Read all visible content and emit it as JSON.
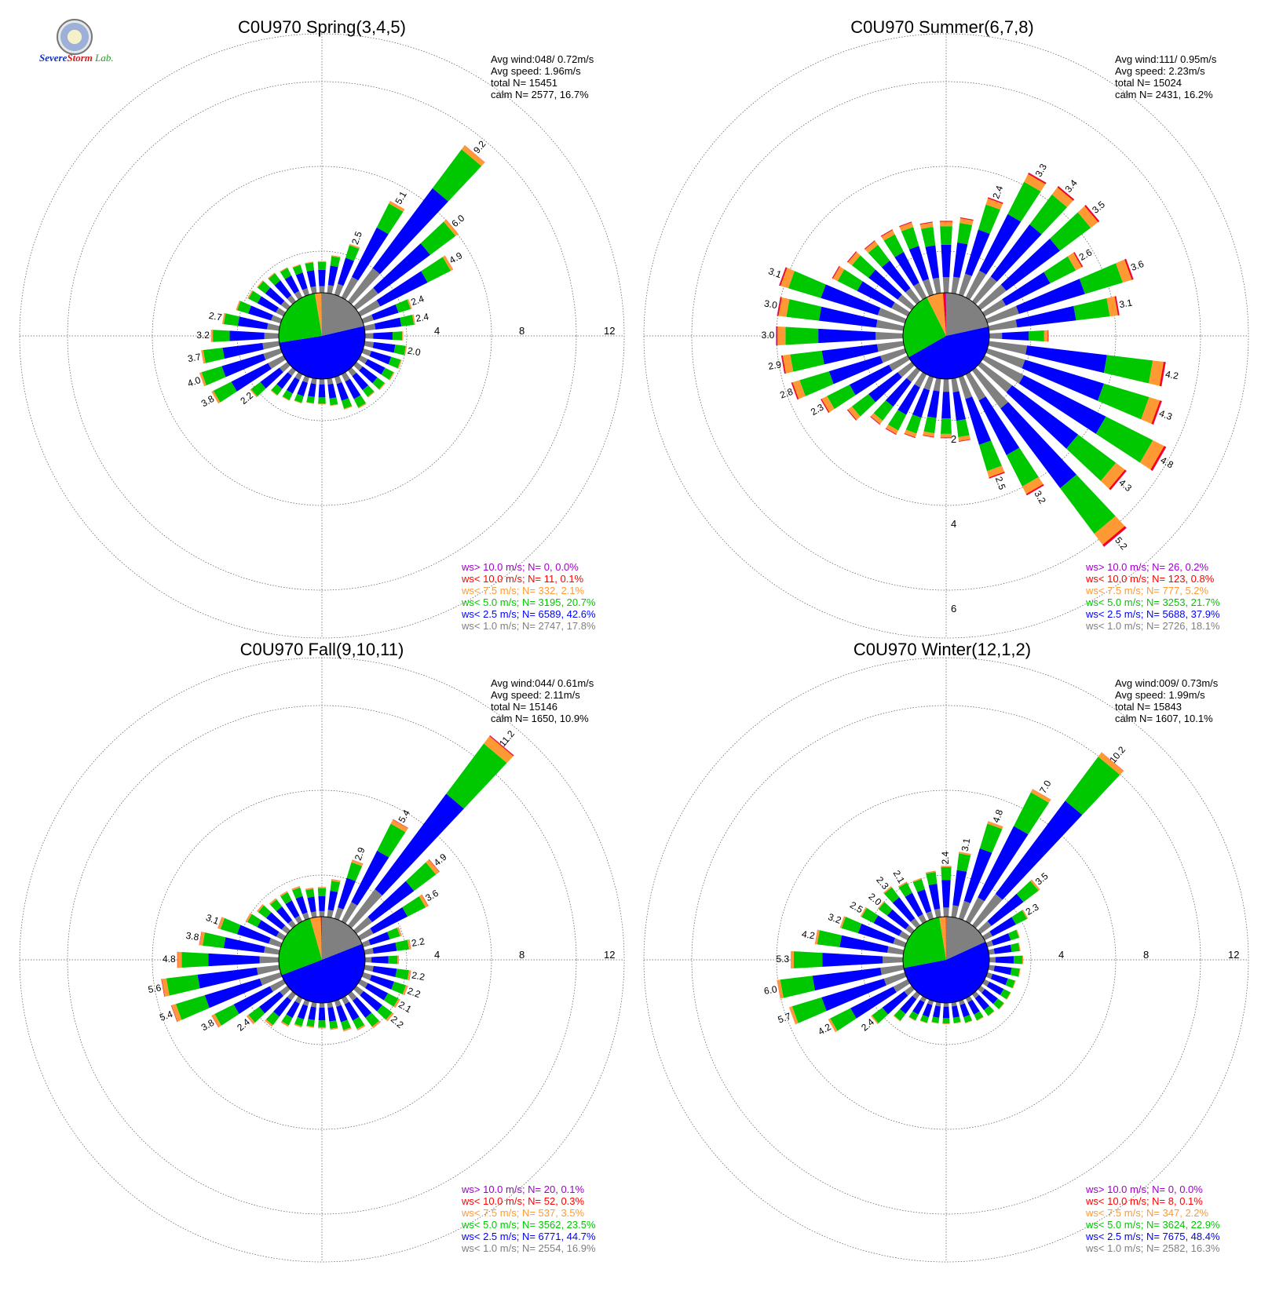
{
  "logo": {
    "text_a": "Severe",
    "text_b": "Storm",
    "text_c": "Lab."
  },
  "colors": {
    "gt10": "#a000c8",
    "lt10": "#ff0000",
    "lt75": "#ff9933",
    "lt5": "#00c800",
    "lt25": "#0000ff",
    "lt1": "#808080"
  },
  "chart_data": [
    {
      "type": "polar-bar",
      "title": "C0U970 Spring(3,4,5)",
      "stats": [
        "Avg wind:048/ 0.72m/s",
        "Avg speed: 1.96m/s",
        "total N=      15451",
        "calm N=   2577,  16.7%"
      ],
      "rings": [
        "4",
        "8",
        "12"
      ],
      "legend": [
        {
          "text": "ws> 10.0 m/s; N=     0,  0.0%",
          "color": "#a000c8"
        },
        {
          "text": "ws< 10.0 m/s; N=    11,  0.1%",
          "color": "#ff0000"
        },
        {
          "text": "ws<  7.5 m/s; N=   332,  2.1%",
          "color": "#ff9933"
        },
        {
          "text": "ws<  5.0 m/s; N=  3195, 20.7%",
          "color": "#00c800"
        },
        {
          "text": "ws<  2.5 m/s; N=  6589, 42.6%",
          "color": "#0000ff"
        },
        {
          "text": "ws<  1.0 m/s; N=  2747, 17.8%",
          "color": "#808080"
        }
      ],
      "calm_pie": [
        17.8,
        42.6,
        20.7,
        2.1,
        0.1,
        0.0
      ],
      "directions": [
        {
          "dir": 0,
          "total": 1.5
        },
        {
          "dir": 10,
          "total": 1.8
        },
        {
          "dir": 20,
          "total": 2.5,
          "label": "2.5"
        },
        {
          "dir": 30,
          "total": 5.1,
          "label": "5.1"
        },
        {
          "dir": 40,
          "total": 9.2,
          "label": "9.2"
        },
        {
          "dir": 50,
          "total": 6.0,
          "label": "6.0"
        },
        {
          "dir": 60,
          "total": 4.9,
          "label": "4.9"
        },
        {
          "dir": 70,
          "total": 2.4,
          "label": "2.4"
        },
        {
          "dir": 80,
          "total": 2.4,
          "label": "2.4"
        },
        {
          "dir": 90,
          "total": 1.8
        },
        {
          "dir": 100,
          "total": 2.0,
          "label": "2.0"
        },
        {
          "dir": 110,
          "total": 1.9
        },
        {
          "dir": 120,
          "total": 1.8
        },
        {
          "dir": 130,
          "total": 1.7
        },
        {
          "dir": 140,
          "total": 1.6
        },
        {
          "dir": 150,
          "total": 1.8
        },
        {
          "dir": 160,
          "total": 1.6
        },
        {
          "dir": 170,
          "total": 1.3
        },
        {
          "dir": 180,
          "total": 1.2
        },
        {
          "dir": 190,
          "total": 1.2
        },
        {
          "dir": 200,
          "total": 1.3
        },
        {
          "dir": 210,
          "total": 1.4
        },
        {
          "dir": 220,
          "total": 1.5
        },
        {
          "dir": 230,
          "total": 2.2,
          "label": "2.2"
        },
        {
          "dir": 240,
          "total": 3.8,
          "label": "3.8"
        },
        {
          "dir": 250,
          "total": 4.0,
          "label": "4.0"
        },
        {
          "dir": 260,
          "total": 3.7,
          "label": "3.7"
        },
        {
          "dir": 270,
          "total": 3.2,
          "label": "3.2"
        },
        {
          "dir": 280,
          "total": 2.7,
          "label": "2.7"
        },
        {
          "dir": 290,
          "total": 2.2
        },
        {
          "dir": 300,
          "total": 1.9
        },
        {
          "dir": 310,
          "total": 1.8
        },
        {
          "dir": 320,
          "total": 1.7
        },
        {
          "dir": 330,
          "total": 1.6
        },
        {
          "dir": 340,
          "total": 1.5
        },
        {
          "dir": 350,
          "total": 1.5
        }
      ]
    },
    {
      "type": "polar-bar",
      "title": "C0U970 Summer(6,7,8)",
      "stats": [
        "Avg wind:111/ 0.95m/s",
        "Avg speed: 2.23m/s",
        "total N=      15024",
        "calm N=   2431,  16.2%"
      ],
      "rings": [
        "2",
        "4",
        "6"
      ],
      "legend": [
        {
          "text": "ws> 10.0 m/s; N=    26,  0.2%",
          "color": "#a000c8"
        },
        {
          "text": "ws< 10.0 m/s; N=   123,  0.8%",
          "color": "#ff0000"
        },
        {
          "text": "ws<  7.5 m/s; N=   777,  5.2%",
          "color": "#ff9933"
        },
        {
          "text": "ws<  5.0 m/s; N=  3253, 21.7%",
          "color": "#00c800"
        },
        {
          "text": "ws<  2.5 m/s; N=  5688, 37.9%",
          "color": "#0000ff"
        },
        {
          "text": "ws<  1.0 m/s; N=  2726, 18.1%",
          "color": "#808080"
        }
      ],
      "calm_pie": [
        18.1,
        37.9,
        21.7,
        5.2,
        0.8,
        0.2
      ],
      "directions": [
        {
          "dir": 0,
          "total": 1.7
        },
        {
          "dir": 10,
          "total": 1.8
        },
        {
          "dir": 20,
          "total": 2.4,
          "label": "2.4"
        },
        {
          "dir": 30,
          "total": 3.3,
          "label": "3.3"
        },
        {
          "dir": 40,
          "total": 3.4,
          "label": "3.4"
        },
        {
          "dir": 50,
          "total": 3.5,
          "label": "3.5"
        },
        {
          "dir": 60,
          "total": 2.6,
          "label": "2.6"
        },
        {
          "dir": 70,
          "total": 3.6,
          "label": "3.6"
        },
        {
          "dir": 80,
          "total": 3.1,
          "label": "3.1"
        },
        {
          "dir": 90,
          "total": 1.4
        },
        {
          "dir": 100,
          "total": 4.2,
          "label": "4.2"
        },
        {
          "dir": 110,
          "total": 4.3,
          "label": "4.3"
        },
        {
          "dir": 120,
          "total": 4.8,
          "label": "4.8"
        },
        {
          "dir": 130,
          "total": 4.3,
          "label": "4.3"
        },
        {
          "dir": 140,
          "total": 5.2,
          "label": "5.2"
        },
        {
          "dir": 150,
          "total": 3.2,
          "label": "3.2"
        },
        {
          "dir": 160,
          "total": 2.5,
          "label": "2.5"
        },
        {
          "dir": 170,
          "total": 1.5
        },
        {
          "dir": 180,
          "total": 1.4
        },
        {
          "dir": 190,
          "total": 1.4
        },
        {
          "dir": 200,
          "total": 1.5
        },
        {
          "dir": 210,
          "total": 1.6
        },
        {
          "dir": 220,
          "total": 1.6
        },
        {
          "dir": 230,
          "total": 1.9
        },
        {
          "dir": 240,
          "total": 2.3,
          "label": "2.3"
        },
        {
          "dir": 250,
          "total": 2.8,
          "label": "2.8"
        },
        {
          "dir": 260,
          "total": 2.9,
          "label": "2.9"
        },
        {
          "dir": 270,
          "total": 3.0,
          "label": "3.0"
        },
        {
          "dir": 280,
          "total": 3.0,
          "label": "3.0"
        },
        {
          "dir": 290,
          "total": 3.1,
          "label": "3.1"
        },
        {
          "dir": 300,
          "total": 2.0
        },
        {
          "dir": 310,
          "total": 1.9
        },
        {
          "dir": 320,
          "total": 1.8
        },
        {
          "dir": 330,
          "total": 1.8
        },
        {
          "dir": 340,
          "total": 1.8
        },
        {
          "dir": 350,
          "total": 1.7
        }
      ]
    },
    {
      "type": "polar-bar",
      "title": "C0U970 Fall(9,10,11)",
      "stats": [
        "Avg wind:044/ 0.61m/s",
        "Avg speed: 2.11m/s",
        "total N=      15146",
        "calm N=   1650,  10.9%"
      ],
      "rings": [
        "4",
        "8",
        "12"
      ],
      "legend": [
        {
          "text": "ws> 10.0 m/s; N=    20,  0.1%",
          "color": "#a000c8"
        },
        {
          "text": "ws< 10.0 m/s; N=    52,  0.3%",
          "color": "#ff0000"
        },
        {
          "text": "ws<  7.5 m/s; N=   537,  3.5%",
          "color": "#ff9933"
        },
        {
          "text": "ws<  5.0 m/s; N=  3562, 23.5%",
          "color": "#00c800"
        },
        {
          "text": "ws<  2.5 m/s; N=  6771, 44.7%",
          "color": "#0000ff"
        },
        {
          "text": "ws<  1.0 m/s; N=  2554, 16.9%",
          "color": "#808080"
        }
      ],
      "calm_pie": [
        16.9,
        44.7,
        23.5,
        3.5,
        0.3,
        0.1
      ],
      "directions": [
        {
          "dir": 0,
          "total": 1.4
        },
        {
          "dir": 10,
          "total": 1.8
        },
        {
          "dir": 20,
          "total": 2.9,
          "label": "2.9"
        },
        {
          "dir": 30,
          "total": 5.4,
          "label": "5.4"
        },
        {
          "dir": 40,
          "total": 11.2,
          "label": "11.2"
        },
        {
          "dir": 50,
          "total": 4.9,
          "label": "4.9"
        },
        {
          "dir": 60,
          "total": 3.6,
          "label": "3.6"
        },
        {
          "dir": 70,
          "total": 1.9
        },
        {
          "dir": 80,
          "total": 2.2,
          "label": "2.2"
        },
        {
          "dir": 90,
          "total": 1.6
        },
        {
          "dir": 100,
          "total": 2.2,
          "label": "2.2"
        },
        {
          "dir": 110,
          "total": 2.2,
          "label": "2.2"
        },
        {
          "dir": 120,
          "total": 2.1,
          "label": "2.1"
        },
        {
          "dir": 130,
          "total": 2.2,
          "label": "2.2"
        },
        {
          "dir": 140,
          "total": 2.0
        },
        {
          "dir": 150,
          "total": 1.7
        },
        {
          "dir": 160,
          "total": 1.5
        },
        {
          "dir": 170,
          "total": 1.3
        },
        {
          "dir": 180,
          "total": 1.2
        },
        {
          "dir": 190,
          "total": 1.2
        },
        {
          "dir": 200,
          "total": 1.3
        },
        {
          "dir": 210,
          "total": 1.5
        },
        {
          "dir": 220,
          "total": 1.9
        },
        {
          "dir": 230,
          "total": 2.4,
          "label": "2.4"
        },
        {
          "dir": 240,
          "total": 3.8,
          "label": "3.8"
        },
        {
          "dir": 250,
          "total": 5.4,
          "label": "5.4"
        },
        {
          "dir": 260,
          "total": 5.6,
          "label": "5.6"
        },
        {
          "dir": 270,
          "total": 4.8,
          "label": "4.8"
        },
        {
          "dir": 280,
          "total": 3.8,
          "label": "3.8"
        },
        {
          "dir": 290,
          "total": 3.1,
          "label": "3.1"
        },
        {
          "dir": 300,
          "total": 2.0
        },
        {
          "dir": 310,
          "total": 1.8
        },
        {
          "dir": 320,
          "total": 1.6
        },
        {
          "dir": 330,
          "total": 1.6
        },
        {
          "dir": 340,
          "total": 1.6
        },
        {
          "dir": 350,
          "total": 1.4
        }
      ]
    },
    {
      "type": "polar-bar",
      "title": "C0U970 Winter(12,1,2)",
      "stats": [
        "Avg wind:009/ 0.73m/s",
        "Avg speed: 1.99m/s",
        "total N=      15843",
        "calm N=   1607,  10.1%"
      ],
      "rings": [
        "4",
        "8",
        "12"
      ],
      "legend": [
        {
          "text": "ws> 10.0 m/s; N=     0,  0.0%",
          "color": "#a000c8"
        },
        {
          "text": "ws< 10.0 m/s; N=     8,  0.1%",
          "color": "#ff0000"
        },
        {
          "text": "ws<  7.5 m/s; N=   347,  2.2%",
          "color": "#ff9933"
        },
        {
          "text": "ws<  5.0 m/s; N=  3624, 22.9%",
          "color": "#00c800"
        },
        {
          "text": "ws<  2.5 m/s; N=  7675, 48.4%",
          "color": "#0000ff"
        },
        {
          "text": "ws<  1.0 m/s; N=  2582, 16.3%",
          "color": "#808080"
        }
      ],
      "calm_pie": [
        16.3,
        48.4,
        22.9,
        2.2,
        0.1,
        0.0
      ],
      "directions": [
        {
          "dir": 0,
          "total": 2.4,
          "label": "2.4"
        },
        {
          "dir": 10,
          "total": 3.1,
          "label": "3.1"
        },
        {
          "dir": 20,
          "total": 4.8,
          "label": "4.8"
        },
        {
          "dir": 30,
          "total": 7.0,
          "label": "7.0"
        },
        {
          "dir": 40,
          "total": 10.2,
          "label": "10.2"
        },
        {
          "dir": 50,
          "total": 3.5,
          "label": "3.5"
        },
        {
          "dir": 60,
          "total": 2.3,
          "label": "2.3"
        },
        {
          "dir": 70,
          "total": 1.6
        },
        {
          "dir": 80,
          "total": 1.5
        },
        {
          "dir": 90,
          "total": 1.6
        },
        {
          "dir": 100,
          "total": 1.5
        },
        {
          "dir": 110,
          "total": 1.4
        },
        {
          "dir": 120,
          "total": 1.4
        },
        {
          "dir": 130,
          "total": 1.4
        },
        {
          "dir": 140,
          "total": 1.3
        },
        {
          "dir": 150,
          "total": 1.2
        },
        {
          "dir": 160,
          "total": 1.1
        },
        {
          "dir": 170,
          "total": 1.0
        },
        {
          "dir": 180,
          "total": 1.0
        },
        {
          "dir": 190,
          "total": 1.0
        },
        {
          "dir": 200,
          "total": 1.1
        },
        {
          "dir": 210,
          "total": 1.2
        },
        {
          "dir": 220,
          "total": 1.6
        },
        {
          "dir": 230,
          "total": 2.4,
          "label": "2.4"
        },
        {
          "dir": 240,
          "total": 4.2,
          "label": "4.2"
        },
        {
          "dir": 250,
          "total": 5.7,
          "label": "5.7"
        },
        {
          "dir": 260,
          "total": 6.0,
          "label": "6.0"
        },
        {
          "dir": 270,
          "total": 5.3,
          "label": "5.3"
        },
        {
          "dir": 280,
          "total": 4.2,
          "label": "4.2"
        },
        {
          "dir": 290,
          "total": 3.2,
          "label": "3.2"
        },
        {
          "dir": 300,
          "total": 2.5,
          "label": "2.5"
        },
        {
          "dir": 310,
          "total": 2.0,
          "label": "2.0"
        },
        {
          "dir": 320,
          "total": 2.3,
          "label": "2.3"
        },
        {
          "dir": 330,
          "total": 2.1,
          "label": "2.1"
        },
        {
          "dir": 340,
          "total": 2.0
        },
        {
          "dir": 350,
          "total": 2.2
        }
      ]
    }
  ]
}
